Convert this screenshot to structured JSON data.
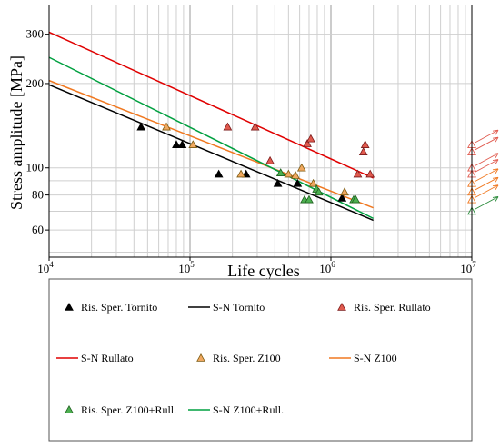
{
  "chart_data": {
    "type": "scatter",
    "xlabel": "Life cycles",
    "ylabel": "Stress amplitude [MPa]",
    "x_scale": "log",
    "y_scale": "log",
    "xlim": [
      10000,
      10000000
    ],
    "ylim": [
      48,
      380
    ],
    "grid": true,
    "legend_placement": "bottom",
    "x_ticks": [
      {
        "value": 10000,
        "base": "10",
        "exp": "4"
      },
      {
        "value": 100000,
        "base": "10",
        "exp": "5"
      },
      {
        "value": 1000000,
        "base": "10",
        "exp": "6"
      },
      {
        "value": 10000000,
        "base": "10",
        "exp": "7"
      }
    ],
    "y_ticks": [
      {
        "value": 60,
        "label": "60"
      },
      {
        "value": 80,
        "label": "80"
      },
      {
        "value": 100,
        "label": "100"
      },
      {
        "value": 200,
        "label": "200"
      },
      {
        "value": 300,
        "label": "300"
      }
    ],
    "series": [
      {
        "name": "Ris. Sper. Tornito",
        "kind": "points",
        "color": "#000000",
        "fill": "#000000",
        "points": [
          [
            45000,
            140
          ],
          [
            80000,
            121
          ],
          [
            88000,
            121
          ],
          [
            160000,
            95
          ],
          [
            250000,
            95
          ],
          [
            420000,
            88
          ],
          [
            580000,
            88
          ],
          [
            1200000,
            78
          ]
        ]
      },
      {
        "name": "S-N Tornito",
        "kind": "line",
        "color": "#000000",
        "points": [
          [
            10000,
            198
          ],
          [
            2000000,
            65
          ]
        ]
      },
      {
        "name": "Ris. Sper. Rullato",
        "kind": "points",
        "color": "#7a1a1a",
        "fill": "#e05a4e",
        "points": [
          [
            185000,
            140
          ],
          [
            290000,
            140
          ],
          [
            370000,
            106
          ],
          [
            680000,
            122
          ],
          [
            720000,
            127
          ],
          [
            1550000,
            95
          ],
          [
            1700000,
            114
          ],
          [
            1750000,
            121
          ],
          [
            1900000,
            95
          ]
        ]
      },
      {
        "name": "S-N Rullato",
        "kind": "line",
        "color": "#e00000",
        "points": [
          [
            10000,
            305
          ],
          [
            2000000,
            92
          ]
        ]
      },
      {
        "name": "Ris. Sper. Z100",
        "kind": "points",
        "color": "#7a5a10",
        "fill": "#f0a860",
        "points": [
          [
            68000,
            140
          ],
          [
            105000,
            121
          ],
          [
            230000,
            95
          ],
          [
            500000,
            95
          ],
          [
            560000,
            94
          ],
          [
            620000,
            100
          ],
          [
            750000,
            88
          ],
          [
            1250000,
            82
          ]
        ]
      },
      {
        "name": "S-N Z100",
        "kind": "line",
        "color": "#f07820",
        "points": [
          [
            10000,
            205
          ],
          [
            2000000,
            72
          ]
        ]
      },
      {
        "name": "Ris. Sper. Z100+Rull.",
        "kind": "points",
        "color": "#1f5f1f",
        "fill": "#4cb050",
        "points": [
          [
            440000,
            96
          ],
          [
            650000,
            77
          ],
          [
            700000,
            77
          ],
          [
            790000,
            84
          ],
          [
            820000,
            82
          ],
          [
            1450000,
            77
          ],
          [
            1500000,
            77
          ]
        ]
      },
      {
        "name": "S-N Z100+Rull.",
        "kind": "line",
        "color": "#00a040",
        "points": [
          [
            10000,
            248
          ],
          [
            2000000,
            66
          ]
        ]
      }
    ],
    "runouts": [
      {
        "x": 10000000,
        "y": 121,
        "color": "#e05a4e",
        "fill": "none"
      },
      {
        "x": 10000000,
        "y": 114,
        "color": "#e05a4e",
        "fill": "none"
      },
      {
        "x": 10000000,
        "y": 100,
        "color": "#e05a4e",
        "fill": "none"
      },
      {
        "x": 10000000,
        "y": 95,
        "color": "#e05a4e",
        "fill": "none"
      },
      {
        "x": 10000000,
        "y": 88,
        "color": "#f07820",
        "fill": "none"
      },
      {
        "x": 10000000,
        "y": 82,
        "color": "#f07820",
        "fill": "none"
      },
      {
        "x": 10000000,
        "y": 77,
        "color": "#f07820",
        "fill": "none"
      },
      {
        "x": 10000000,
        "y": 70,
        "color": "#2a8a3a",
        "fill": "none"
      }
    ]
  }
}
